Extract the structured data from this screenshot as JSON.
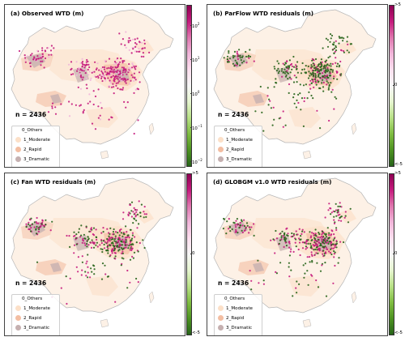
{
  "colors": {
    "others": "#fdf1e6",
    "moderate": "#fce0c8",
    "rapid": "#f3bea2",
    "dramatic": "#c5b0b0",
    "outline": "#b5b5b5",
    "pos": "#c51b7d",
    "neg": "#276419"
  },
  "legend": {
    "title": "0_Others",
    "items": [
      {
        "label": "1_Moderate",
        "color": "#fce0c8"
      },
      {
        "label": "2_Rapid",
        "color": "#f3bea2"
      },
      {
        "label": "3_Dramatic",
        "color": "#c5b0b0"
      }
    ]
  },
  "panels": [
    {
      "title": "(a) Observed WTD (m)",
      "n": "n = 2436",
      "scale": "log",
      "ticks": [
        {
          "base": "10",
          "exp": "2"
        },
        {
          "base": "10",
          "exp": "1"
        },
        {
          "base": "10",
          "exp": "0"
        },
        {
          "base": "10",
          "exp": "−1"
        },
        {
          "base": "10",
          "exp": "−2"
        }
      ]
    },
    {
      "title": "(b) ParFlow WTD residuals (m)",
      "n": "n = 2436",
      "scale": "diverging",
      "ticks": [
        {
          "text": ">5"
        },
        {
          "text": "0"
        },
        {
          "text": "<-5"
        }
      ]
    },
    {
      "title": "(c) Fan WTD residuals (m)",
      "n": "n = 2436",
      "scale": "diverging",
      "ticks": [
        {
          "text": ">5"
        },
        {
          "text": "0"
        },
        {
          "text": "<-5"
        }
      ]
    },
    {
      "title": "(d) GLOBGM v1.0 WTD residuals (m)",
      "n": "n = 2436",
      "scale": "diverging",
      "ticks": [
        {
          "text": ">5"
        },
        {
          "text": "0"
        },
        {
          "text": "<-5"
        }
      ]
    }
  ]
}
